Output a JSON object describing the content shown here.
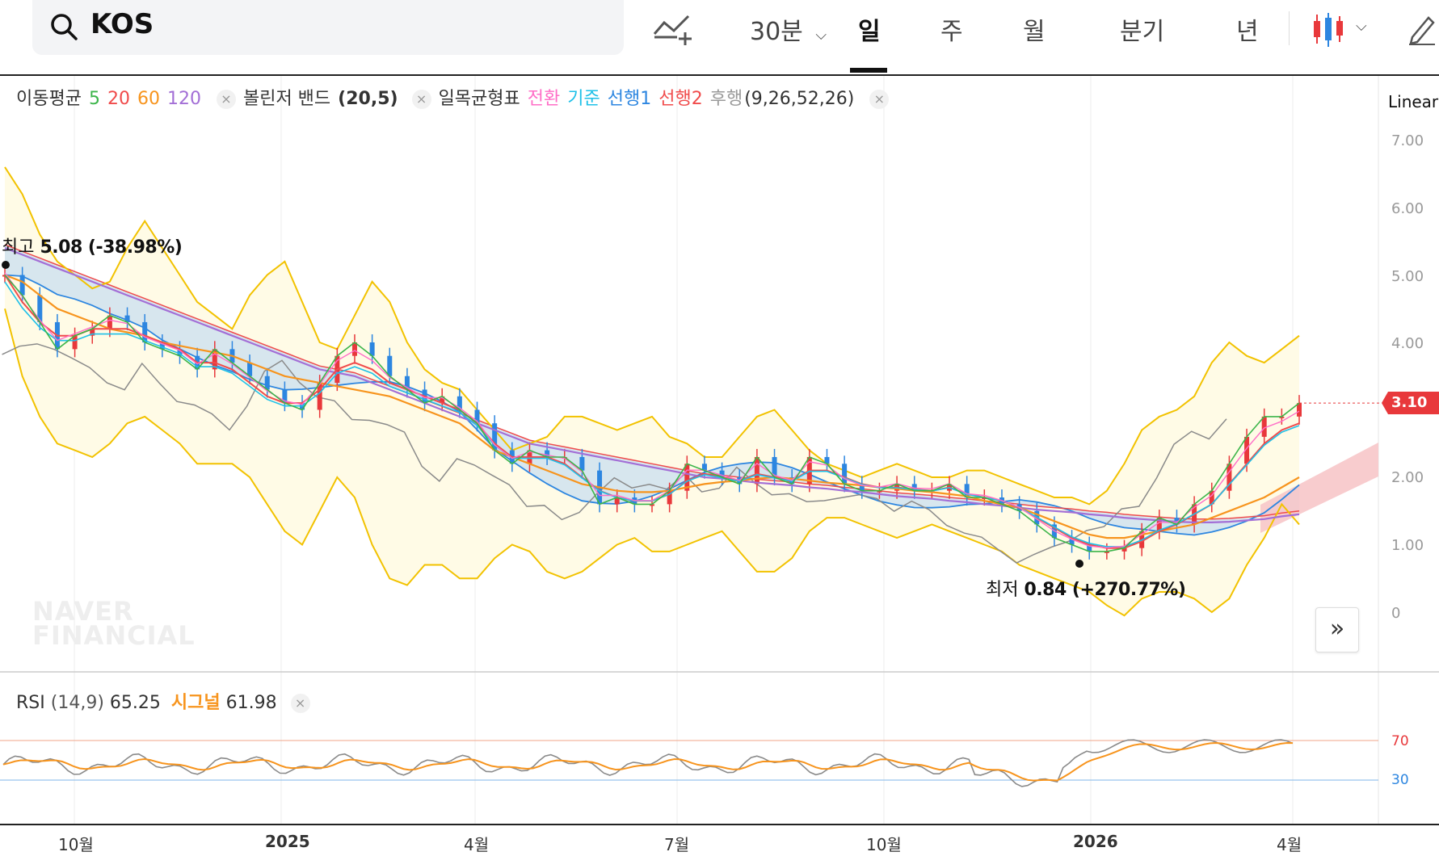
{
  "header": {
    "symbol": "KOS",
    "interval_menu": "30분",
    "periods": [
      "일",
      "주",
      "월",
      "분기",
      "년"
    ],
    "active_period": "일",
    "icons": [
      "search-icon",
      "add-indicator-icon",
      "chevron-down-icon",
      "candlestick-icon",
      "pencil-icon"
    ]
  },
  "legend": {
    "ma_label": "이동평균",
    "ma_periods": [
      "5",
      "20",
      "60",
      "120"
    ],
    "ma_colors": [
      "#3cb54a",
      "#f04b4b",
      "#f7941d",
      "#a36fd6"
    ],
    "bb_label": "볼린저 밴드",
    "bb_params": "(20,5)",
    "ichimoku_label": "일목균형표",
    "ichimoku_lines": [
      "전환",
      "기준",
      "선행1",
      "선행2",
      "후행"
    ],
    "ichimoku_colors": [
      "#ff6ec7",
      "#1fc0e8",
      "#2d86e0",
      "#f04b4b",
      "#9a9a9a"
    ],
    "ichimoku_params": "(9,26,52,26)",
    "close_glyph": "×"
  },
  "scale": "Linear",
  "chart_data": {
    "type": "line",
    "title": "",
    "y_ticks": [
      "7.00",
      "6.00",
      "5.00",
      "4.00",
      "2.00",
      "1.00",
      "0"
    ],
    "ylim": [
      0,
      7.3
    ],
    "current_price": "3.10",
    "high_annotation": {
      "label": "최고",
      "value": "5.08 (-38.98%)"
    },
    "low_annotation": {
      "label": "최저",
      "value": "0.84 (+270.77%)"
    },
    "x_ticks": [
      "10월",
      "2025",
      "4월",
      "7월",
      "10월",
      "2026",
      "4월"
    ],
    "close_series": [
      5.0,
      4.7,
      4.3,
      3.9,
      4.1,
      4.2,
      4.4,
      4.3,
      4.0,
      3.9,
      3.8,
      3.6,
      3.9,
      3.7,
      3.5,
      3.3,
      3.1,
      3.0,
      3.4,
      3.8,
      4.0,
      3.8,
      3.5,
      3.3,
      3.1,
      3.2,
      3.0,
      2.8,
      2.4,
      2.2,
      2.4,
      2.3,
      2.3,
      2.1,
      1.6,
      1.7,
      1.6,
      1.6,
      1.8,
      2.2,
      2.1,
      2.0,
      1.9,
      2.3,
      2.0,
      1.9,
      2.3,
      2.2,
      1.9,
      1.8,
      1.8,
      1.9,
      1.8,
      1.8,
      1.9,
      1.7,
      1.7,
      1.6,
      1.5,
      1.3,
      1.1,
      1.0,
      0.9,
      0.9,
      0.95,
      1.2,
      1.4,
      1.3,
      1.6,
      1.8,
      2.2,
      2.6,
      2.9,
      2.9,
      3.1
    ],
    "bb_upper": [
      6.6,
      6.2,
      5.6,
      5.2,
      5.0,
      4.8,
      4.9,
      5.4,
      5.8,
      5.4,
      5.0,
      4.6,
      4.4,
      4.2,
      4.7,
      5.0,
      5.2,
      4.6,
      4.0,
      3.9,
      4.4,
      4.9,
      4.6,
      4.0,
      3.6,
      3.4,
      3.3,
      3.0,
      2.7,
      2.4,
      2.5,
      2.6,
      2.9,
      2.9,
      2.8,
      2.7,
      2.8,
      2.9,
      2.6,
      2.5,
      2.3,
      2.3,
      2.6,
      2.9,
      3.0,
      2.7,
      2.4,
      2.2,
      2.1,
      2.0,
      2.1,
      2.2,
      2.1,
      2.0,
      2.0,
      2.1,
      2.1,
      2.0,
      1.9,
      1.8,
      1.7,
      1.7,
      1.6,
      1.8,
      2.2,
      2.7,
      2.9,
      3.0,
      3.2,
      3.7,
      4.0,
      3.8,
      3.7,
      3.9,
      4.1
    ],
    "bb_lower": [
      4.5,
      3.5,
      2.9,
      2.5,
      2.4,
      2.3,
      2.5,
      2.8,
      2.9,
      2.7,
      2.5,
      2.2,
      2.2,
      2.2,
      2.0,
      1.6,
      1.2,
      1.0,
      1.5,
      2.0,
      1.7,
      1.0,
      0.5,
      0.4,
      0.7,
      0.7,
      0.5,
      0.5,
      0.8,
      1.0,
      0.9,
      0.6,
      0.5,
      0.6,
      0.8,
      1.0,
      1.1,
      0.9,
      0.9,
      1.0,
      1.1,
      1.2,
      0.9,
      0.6,
      0.6,
      0.8,
      1.2,
      1.4,
      1.4,
      1.3,
      1.2,
      1.1,
      1.2,
      1.3,
      1.2,
      1.1,
      1.0,
      0.9,
      0.7,
      0.6,
      0.5,
      0.4,
      0.3,
      0.1,
      -0.05,
      0.2,
      0.3,
      0.3,
      0.2,
      0.0,
      0.2,
      0.7,
      1.1,
      1.6,
      1.3
    ],
    "ma120": [
      5.4,
      5.3,
      5.2,
      5.1,
      5.0,
      4.9,
      4.8,
      4.7,
      4.6,
      4.5,
      4.4,
      4.3,
      4.2,
      4.1,
      4.0,
      3.9,
      3.8,
      3.7,
      3.6,
      3.55,
      3.5,
      3.4,
      3.3,
      3.2,
      3.1,
      3.0,
      2.9,
      2.8,
      2.7,
      2.6,
      2.5,
      2.45,
      2.4,
      2.35,
      2.3,
      2.25,
      2.2,
      2.15,
      2.1,
      2.05,
      2.0,
      1.98,
      1.95,
      1.92,
      1.9,
      1.88,
      1.85,
      1.83,
      1.8,
      1.78,
      1.75,
      1.72,
      1.7,
      1.68,
      1.65,
      1.63,
      1.6,
      1.58,
      1.55,
      1.52,
      1.5,
      1.48,
      1.45,
      1.43,
      1.4,
      1.38,
      1.36,
      1.34,
      1.33,
      1.33,
      1.34,
      1.36,
      1.38,
      1.42,
      1.45
    ],
    "ma60": [
      5.0,
      4.9,
      4.7,
      4.5,
      4.4,
      4.3,
      4.2,
      4.15,
      4.1,
      4.0,
      3.95,
      3.9,
      3.85,
      3.8,
      3.7,
      3.6,
      3.5,
      3.45,
      3.4,
      3.35,
      3.3,
      3.25,
      3.2,
      3.1,
      3.0,
      2.9,
      2.8,
      2.6,
      2.4,
      2.3,
      2.2,
      2.1,
      2.0,
      1.9,
      1.85,
      1.8,
      1.78,
      1.78,
      1.8,
      1.85,
      1.9,
      1.93,
      1.95,
      1.98,
      2.0,
      1.98,
      1.95,
      1.92,
      1.9,
      1.88,
      1.85,
      1.83,
      1.8,
      1.78,
      1.75,
      1.72,
      1.65,
      1.6,
      1.55,
      1.45,
      1.35,
      1.25,
      1.15,
      1.1,
      1.1,
      1.15,
      1.2,
      1.25,
      1.3,
      1.4,
      1.5,
      1.6,
      1.7,
      1.85,
      2.0
    ],
    "ma20": [
      5.0,
      4.6,
      4.3,
      4.1,
      4.1,
      4.2,
      4.2,
      4.2,
      4.1,
      4.0,
      3.9,
      3.7,
      3.7,
      3.6,
      3.4,
      3.2,
      3.1,
      3.1,
      3.3,
      3.6,
      3.7,
      3.6,
      3.4,
      3.3,
      3.2,
      3.1,
      3.0,
      2.8,
      2.5,
      2.3,
      2.3,
      2.3,
      2.2,
      2.0,
      1.8,
      1.7,
      1.65,
      1.65,
      1.75,
      1.95,
      2.05,
      2.0,
      1.95,
      2.05,
      2.0,
      1.95,
      2.1,
      2.1,
      2.0,
      1.9,
      1.85,
      1.85,
      1.82,
      1.8,
      1.85,
      1.75,
      1.7,
      1.65,
      1.55,
      1.4,
      1.25,
      1.1,
      1.0,
      0.95,
      0.95,
      1.05,
      1.2,
      1.3,
      1.45,
      1.6,
      1.9,
      2.2,
      2.5,
      2.7,
      2.8
    ],
    "rsi": {
      "period": "(14,9)",
      "value": "65.25",
      "signal_label": "시그널",
      "signal_value": "61.98",
      "levels": [
        "70",
        "30"
      ]
    }
  },
  "colors": {
    "up": "#e8383b",
    "down": "#2d86e0",
    "bb": "#f2c200",
    "bb_fill": "#fffbe6",
    "cloud_blue": "#c9dff0",
    "cloud_red": "#f7c7c9",
    "rsi_line": "#8a8a8a",
    "rsi_signal": "#f7941d",
    "rsi_upper": "#f0a58a",
    "rsi_lower": "#7fb6e8"
  },
  "watermark": [
    "NAVER",
    "FINANCIAL"
  ]
}
